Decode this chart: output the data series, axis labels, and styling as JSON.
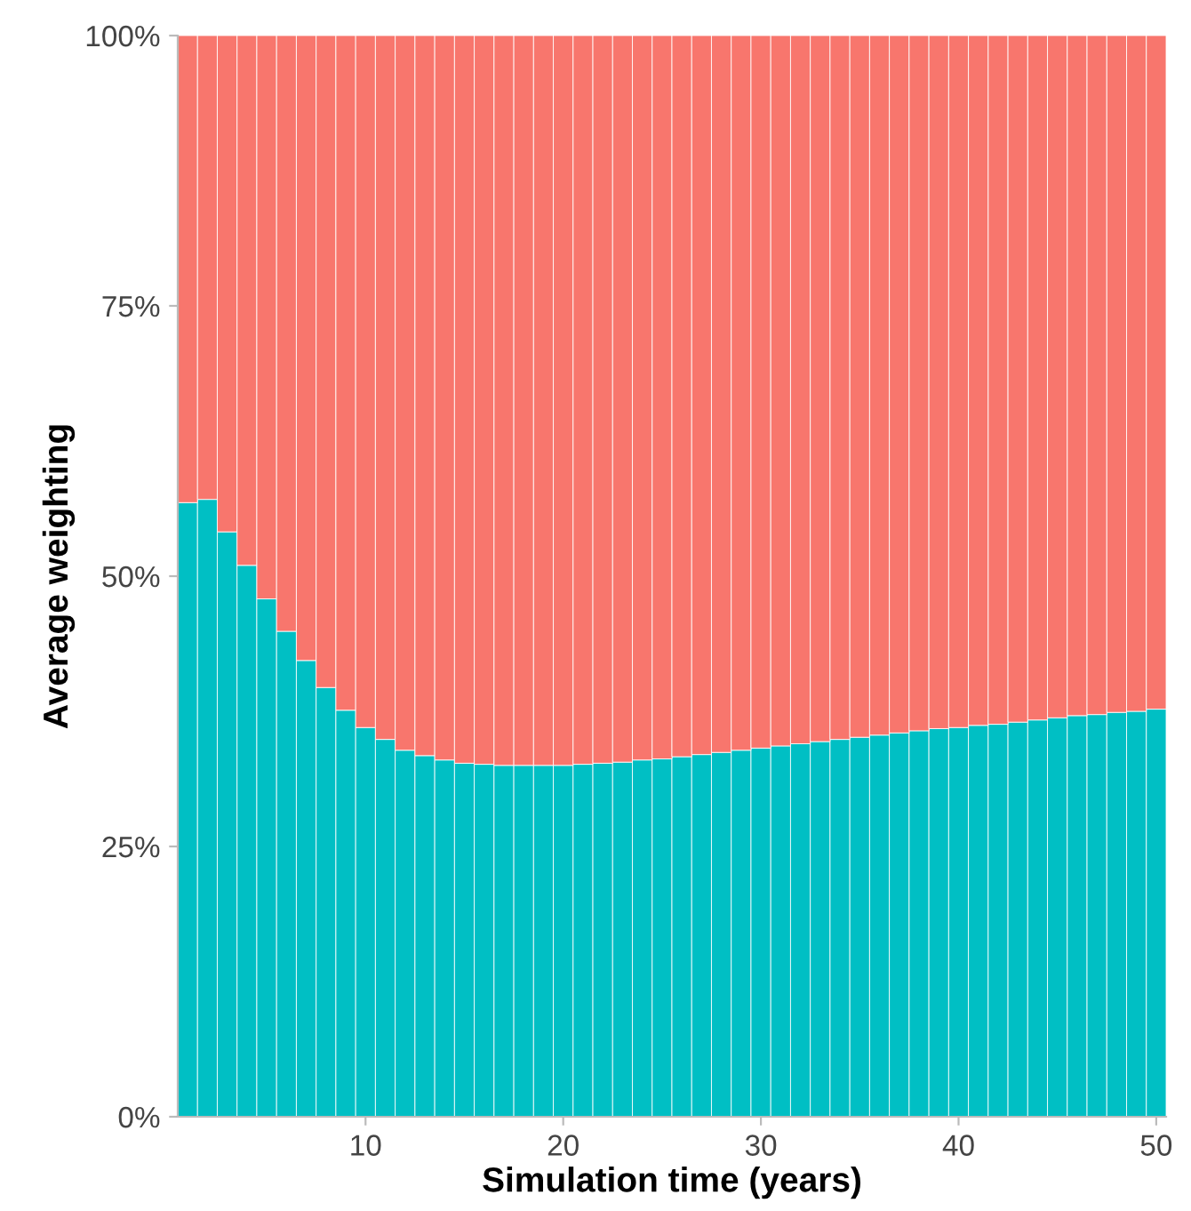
{
  "chart_data": {
    "type": "bar",
    "stacked": true,
    "xlabel": "Simulation time (years)",
    "ylabel": "Average weighting",
    "x": [
      1,
      2,
      3,
      4,
      5,
      6,
      7,
      8,
      9,
      10,
      11,
      12,
      13,
      14,
      15,
      16,
      17,
      18,
      19,
      20,
      21,
      22,
      23,
      24,
      25,
      26,
      27,
      28,
      29,
      30,
      31,
      32,
      33,
      34,
      35,
      36,
      37,
      38,
      39,
      40,
      41,
      42,
      43,
      44,
      45,
      46,
      47,
      48,
      49,
      50
    ],
    "series": [
      {
        "color": "#00bfc4",
        "values": [
          56.8,
          57.1,
          54.1,
          51.0,
          47.9,
          44.9,
          42.2,
          39.7,
          37.6,
          36.0,
          34.9,
          33.9,
          33.4,
          33.0,
          32.7,
          32.6,
          32.5,
          32.5,
          32.5,
          32.5,
          32.6,
          32.7,
          32.8,
          33.0,
          33.1,
          33.3,
          33.5,
          33.7,
          33.9,
          34.1,
          34.3,
          34.5,
          34.7,
          34.9,
          35.1,
          35.3,
          35.5,
          35.7,
          35.9,
          36.0,
          36.2,
          36.3,
          36.5,
          36.7,
          36.9,
          37.1,
          37.2,
          37.4,
          37.5,
          37.7
        ]
      },
      {
        "color": "#f8766d",
        "values": [
          43.2,
          42.9,
          45.9,
          49.0,
          52.1,
          55.1,
          57.8,
          60.3,
          62.4,
          64.0,
          65.1,
          66.1,
          66.6,
          67.0,
          67.3,
          67.4,
          67.5,
          67.5,
          67.5,
          67.5,
          67.4,
          67.3,
          67.2,
          67.0,
          66.9,
          66.7,
          66.5,
          66.3,
          66.1,
          65.9,
          65.7,
          65.5,
          65.3,
          65.1,
          64.9,
          64.7,
          64.5,
          64.3,
          64.1,
          64.0,
          63.8,
          63.7,
          63.5,
          63.3,
          63.1,
          62.9,
          62.8,
          62.6,
          62.5,
          62.3
        ]
      }
    ],
    "xlim": [
      0.5,
      50.5
    ],
    "xticks": [
      10,
      20,
      30,
      40,
      50
    ],
    "ylim": [
      0,
      100
    ],
    "yticks": [
      {
        "value": 0,
        "label": "0%"
      },
      {
        "value": 25,
        "label": "25%"
      },
      {
        "value": 50,
        "label": "50%"
      },
      {
        "value": 75,
        "label": "75%"
      },
      {
        "value": 100,
        "label": "100%"
      }
    ],
    "grid": false,
    "legend": false
  }
}
